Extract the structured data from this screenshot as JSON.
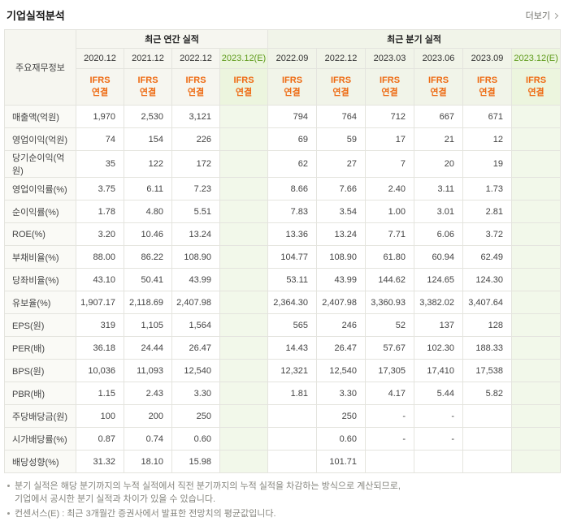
{
  "page": {
    "title": "기업실적분석",
    "more_label": "더보기"
  },
  "colors": {
    "ifrs_orange": "#ee6a12",
    "estimate_text": "#5d9a19",
    "estimate_bg_head": "#ecf5de",
    "estimate_bg_body": "#f2f8ea",
    "header_bg": "#f6f6f0",
    "quarter_bg": "#f1f4e9",
    "label_bg": "#fafaf6",
    "grid_line": "#e4e4de"
  },
  "table": {
    "corner_label": "주요재무정보",
    "groups": [
      {
        "label": "최근 연간 실적",
        "cols": 4
      },
      {
        "label": "최근 분기 실적",
        "cols": 6
      }
    ],
    "columns": [
      {
        "period": "2020.12",
        "standard": "IFRS",
        "scope": "연결",
        "estimate": false
      },
      {
        "period": "2021.12",
        "standard": "IFRS",
        "scope": "연결",
        "estimate": false
      },
      {
        "period": "2022.12",
        "standard": "IFRS",
        "scope": "연결",
        "estimate": false
      },
      {
        "period": "2023.12(E)",
        "standard": "IFRS",
        "scope": "연결",
        "estimate": true
      },
      {
        "period": "2022.09",
        "standard": "IFRS",
        "scope": "연결",
        "estimate": false
      },
      {
        "period": "2022.12",
        "standard": "IFRS",
        "scope": "연결",
        "estimate": false
      },
      {
        "period": "2023.03",
        "standard": "IFRS",
        "scope": "연결",
        "estimate": false
      },
      {
        "period": "2023.06",
        "standard": "IFRS",
        "scope": "연결",
        "estimate": false
      },
      {
        "period": "2023.09",
        "standard": "IFRS",
        "scope": "연결",
        "estimate": false
      },
      {
        "period": "2023.12(E)",
        "standard": "IFRS",
        "scope": "연결",
        "estimate": true
      }
    ],
    "rows": [
      {
        "label": "매출액(억원)",
        "values": [
          "1,970",
          "2,530",
          "3,121",
          "",
          "794",
          "764",
          "712",
          "667",
          "671",
          ""
        ]
      },
      {
        "label": "영업이익(억원)",
        "values": [
          "74",
          "154",
          "226",
          "",
          "69",
          "59",
          "17",
          "21",
          "12",
          ""
        ]
      },
      {
        "label": "당기순이익(억원)",
        "values": [
          "35",
          "122",
          "172",
          "",
          "62",
          "27",
          "7",
          "20",
          "19",
          ""
        ]
      },
      {
        "label": "영업이익률(%)",
        "values": [
          "3.75",
          "6.11",
          "7.23",
          "",
          "8.66",
          "7.66",
          "2.40",
          "3.11",
          "1.73",
          ""
        ]
      },
      {
        "label": "순이익률(%)",
        "values": [
          "1.78",
          "4.80",
          "5.51",
          "",
          "7.83",
          "3.54",
          "1.00",
          "3.01",
          "2.81",
          ""
        ]
      },
      {
        "label": "ROE(%)",
        "values": [
          "3.20",
          "10.46",
          "13.24",
          "",
          "13.36",
          "13.24",
          "7.71",
          "6.06",
          "3.72",
          ""
        ]
      },
      {
        "label": "부채비율(%)",
        "values": [
          "88.00",
          "86.22",
          "108.90",
          "",
          "104.77",
          "108.90",
          "61.80",
          "60.94",
          "62.49",
          ""
        ]
      },
      {
        "label": "당좌비율(%)",
        "values": [
          "43.10",
          "50.41",
          "43.99",
          "",
          "53.11",
          "43.99",
          "144.62",
          "124.65",
          "124.30",
          ""
        ]
      },
      {
        "label": "유보율(%)",
        "values": [
          "1,907.17",
          "2,118.69",
          "2,407.98",
          "",
          "2,364.30",
          "2,407.98",
          "3,360.93",
          "3,382.02",
          "3,407.64",
          ""
        ]
      },
      {
        "label": "EPS(원)",
        "values": [
          "319",
          "1,105",
          "1,564",
          "",
          "565",
          "246",
          "52",
          "137",
          "128",
          ""
        ]
      },
      {
        "label": "PER(배)",
        "values": [
          "36.18",
          "24.44",
          "26.47",
          "",
          "14.43",
          "26.47",
          "57.67",
          "102.30",
          "188.33",
          ""
        ]
      },
      {
        "label": "BPS(원)",
        "values": [
          "10,036",
          "11,093",
          "12,540",
          "",
          "12,321",
          "12,540",
          "17,305",
          "17,410",
          "17,538",
          ""
        ]
      },
      {
        "label": "PBR(배)",
        "values": [
          "1.15",
          "2.43",
          "3.30",
          "",
          "1.81",
          "3.30",
          "4.17",
          "5.44",
          "5.82",
          ""
        ]
      },
      {
        "label": "주당배당금(원)",
        "values": [
          "100",
          "200",
          "250",
          "",
          "",
          "250",
          "-",
          "-",
          "",
          ""
        ]
      },
      {
        "label": "시가배당률(%)",
        "values": [
          "0.87",
          "0.74",
          "0.60",
          "",
          "",
          "0.60",
          "-",
          "-",
          "",
          ""
        ]
      },
      {
        "label": "배당성향(%)",
        "values": [
          "31.32",
          "18.10",
          "15.98",
          "",
          "",
          "101.71",
          "",
          "",
          "",
          ""
        ]
      }
    ]
  },
  "footnotes": {
    "note1_line1": "분기 실적은 해당 분기까지의 누적 실적에서 직전 분기까지의 누적 실적을 차감하는 방식으로 계산되므로,",
    "note1_line2": "기업에서 공시한 분기 실적과 차이가 있을 수 있습니다.",
    "note2": "컨센서스(E) : 최근 3개월간 증권사에서 발표한 전망치의 평균값입니다."
  }
}
